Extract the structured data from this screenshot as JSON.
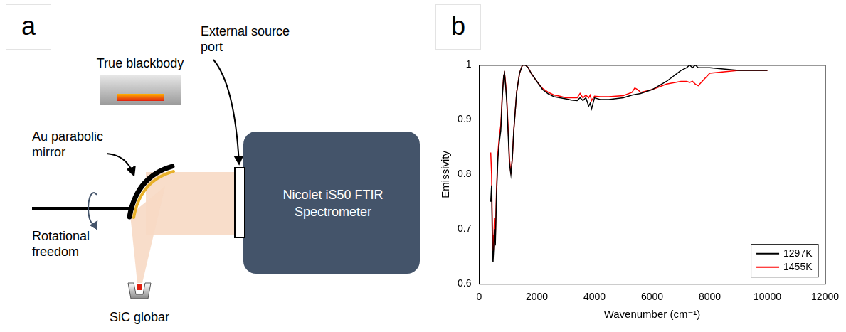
{
  "panel_labels": [
    "a",
    "b"
  ],
  "diagram": {
    "labels": {
      "blackbody": "True blackbody",
      "source_port": "External source port",
      "mirror": "Au parabolic mirror",
      "rotation": "Rotational freedom",
      "globar": "SiC globar",
      "spectrometer": "Nicolet iS50 FTIR Spectrometer"
    }
  },
  "chart_data": {
    "type": "line",
    "x_label": "Wavenumber (cm⁻¹)",
    "y_label": "Emissivity",
    "x": [
      400,
      430,
      460,
      480,
      500,
      530,
      560,
      600,
      650,
      700,
      750,
      800,
      850,
      880,
      920,
      960,
      1000,
      1050,
      1100,
      1150,
      1200,
      1300,
      1400,
      1500,
      1600,
      1700,
      1800,
      2000,
      2200,
      2400,
      2600,
      2800,
      3000,
      3200,
      3400,
      3500,
      3600,
      3700,
      3800,
      3850,
      3900,
      4000,
      4200,
      4500,
      5000,
      5300,
      5400,
      5500,
      5600,
      6000,
      6500,
      7000,
      7200,
      7300,
      7400,
      7500,
      7600,
      7700,
      8000,
      9000,
      10000
    ],
    "series": [
      {
        "name": "1297K",
        "color": "#000000",
        "values": [
          0.75,
          0.78,
          0.66,
          0.64,
          0.66,
          0.7,
          0.67,
          0.76,
          0.83,
          0.86,
          0.88,
          0.94,
          0.98,
          0.985,
          0.96,
          0.93,
          0.88,
          0.82,
          0.8,
          0.83,
          0.88,
          0.95,
          0.985,
          1.0,
          1.0,
          0.995,
          0.985,
          0.97,
          0.955,
          0.947,
          0.942,
          0.94,
          0.938,
          0.936,
          0.935,
          0.94,
          0.935,
          0.94,
          0.925,
          0.93,
          0.92,
          0.94,
          0.937,
          0.937,
          0.94,
          0.945,
          0.946,
          0.947,
          0.948,
          0.955,
          0.97,
          0.99,
          0.995,
          1.0,
          0.995,
          1.0,
          0.995,
          0.995,
          0.995,
          0.99,
          0.99
        ]
      },
      {
        "name": "1455K",
        "color": "#ff0000",
        "values": [
          0.84,
          0.8,
          0.69,
          0.65,
          0.67,
          0.72,
          0.68,
          0.77,
          0.84,
          0.87,
          0.89,
          0.945,
          0.98,
          0.985,
          0.965,
          0.935,
          0.89,
          0.83,
          0.8,
          0.83,
          0.88,
          0.95,
          0.985,
          1.0,
          1.0,
          0.995,
          0.985,
          0.97,
          0.957,
          0.95,
          0.945,
          0.943,
          0.94,
          0.94,
          0.94,
          0.948,
          0.94,
          0.945,
          0.94,
          0.945,
          0.935,
          0.943,
          0.942,
          0.942,
          0.944,
          0.95,
          0.958,
          0.955,
          0.95,
          0.955,
          0.965,
          0.97,
          0.97,
          0.968,
          0.97,
          0.965,
          0.962,
          0.968,
          0.985,
          0.99,
          0.99
        ]
      }
    ],
    "xlim": [
      0,
      12000
    ],
    "xticks": [
      0,
      2000,
      4000,
      6000,
      8000,
      10000,
      12000
    ],
    "ylim": [
      0.6,
      1
    ],
    "yticks": [
      0.6,
      0.7,
      0.8,
      0.9,
      1
    ],
    "grid": false,
    "legend": "lower right"
  }
}
